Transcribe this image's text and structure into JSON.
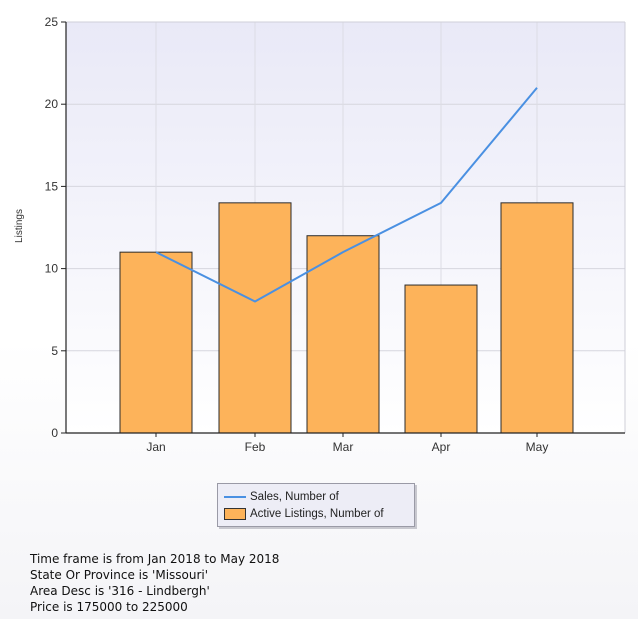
{
  "chart_data": {
    "type": "bar",
    "categories": [
      "Jan",
      "Feb",
      "Mar",
      "Apr",
      "May"
    ],
    "ylabel": "Listings",
    "ylim": [
      0,
      25
    ],
    "yticks": [
      0,
      5,
      10,
      15,
      20,
      25
    ],
    "grid": true,
    "legend_placement": "bottom-center",
    "series": [
      {
        "name": "Active Listings, Number of",
        "type": "bar",
        "values": [
          11,
          14,
          12,
          9,
          14
        ],
        "color": "#fdb35a"
      },
      {
        "name": "Sales, Number of",
        "type": "line",
        "values": [
          11,
          8,
          11,
          14,
          21
        ],
        "color": "#4a90e2"
      }
    ]
  },
  "notes": [
    "Time frame is from Jan 2018 to May 2018",
    "State Or Province is 'Missouri'",
    "Area Desc is '316 - Lindbergh'",
    "Price is 175000 to 225000"
  ]
}
